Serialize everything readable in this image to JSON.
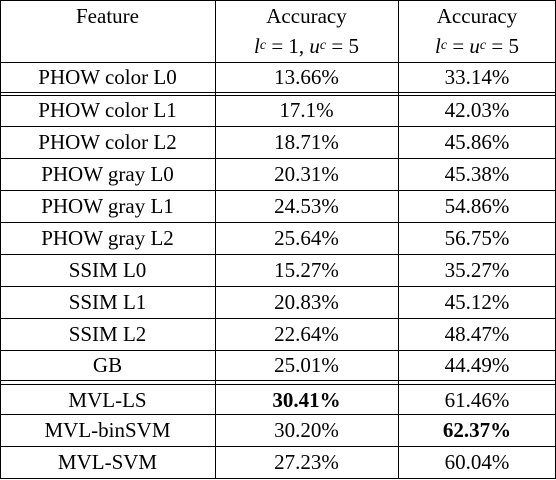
{
  "header": [
    {
      "line1": "Feature"
    },
    {
      "line1": "Accuracy",
      "line2": [
        [
          "l",
          "c"
        ],
        " = 1, ",
        [
          "u",
          "c"
        ],
        " = 5"
      ]
    },
    {
      "line1": "Accuracy",
      "line2": [
        [
          "l",
          "c"
        ],
        " = ",
        [
          "u",
          "c"
        ],
        " = 5"
      ]
    }
  ],
  "rows": [
    [
      {
        "text": "PHOW color L0"
      },
      {
        "text": "13.66%"
      },
      {
        "text": "33.14%"
      }
    ],
    [
      {
        "text": "PHOW color L1"
      },
      {
        "text": "17.1%"
      },
      {
        "text": "42.03%"
      }
    ],
    [
      {
        "text": "PHOW color L2"
      },
      {
        "text": "18.71%"
      },
      {
        "text": "45.86%"
      }
    ],
    [
      {
        "text": "PHOW gray L0"
      },
      {
        "text": "20.31%"
      },
      {
        "text": "45.38%"
      }
    ],
    [
      {
        "text": "PHOW gray L1"
      },
      {
        "text": "24.53%"
      },
      {
        "text": "54.86%"
      }
    ],
    [
      {
        "text": "PHOW gray L2"
      },
      {
        "text": "25.64%"
      },
      {
        "text": "56.75%"
      }
    ],
    [
      {
        "text": "SSIM L0"
      },
      {
        "text": "15.27%"
      },
      {
        "text": "35.27%"
      }
    ],
    [
      {
        "text": "SSIM L1"
      },
      {
        "text": "20.83%"
      },
      {
        "text": "45.12%"
      }
    ],
    [
      {
        "text": "SSIM L2"
      },
      {
        "text": "22.64%"
      },
      {
        "text": "48.47%"
      }
    ],
    [
      {
        "text": "GB"
      },
      {
        "text": "25.01%"
      },
      {
        "text": "44.49%"
      }
    ],
    [
      {
        "text": "MVL-LS"
      },
      {
        "text": "30.41%",
        "bold": true
      },
      {
        "text": "61.46%"
      }
    ],
    [
      {
        "text": "MVL-binSVM"
      },
      {
        "text": "30.20%"
      },
      {
        "text": "62.37%",
        "bold": true
      }
    ],
    [
      {
        "text": "MVL-SVM"
      },
      {
        "text": "27.23%"
      },
      {
        "text": "60.04%"
      }
    ]
  ]
}
